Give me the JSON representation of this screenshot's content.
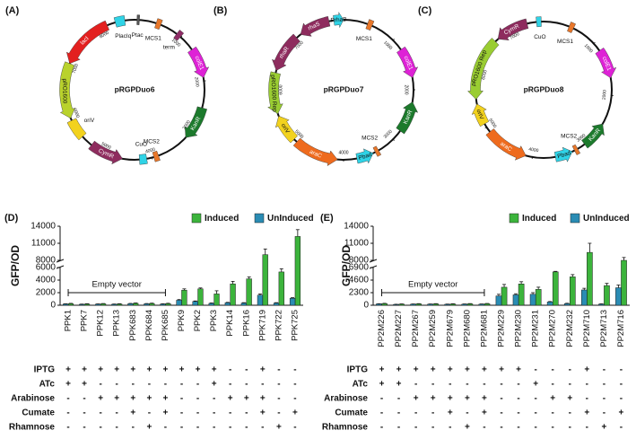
{
  "plasmids": [
    {
      "label": "(A)",
      "name": "pRGPDuo6",
      "ticks": [
        1000,
        2000,
        3000,
        4000,
        5000,
        6000,
        7000,
        8000
      ],
      "features": [
        {
          "label": "lacI",
          "color": "#e3201f"
        },
        {
          "label": "PlacIq",
          "color": "#2fd3e6"
        },
        {
          "label": "Ptac",
          "color": "#555555"
        },
        {
          "label": "MCS1",
          "color": "#e8772a"
        },
        {
          "label": "term",
          "color": "#8e2c66"
        },
        {
          "label": "colE1",
          "color": "#de22d6"
        },
        {
          "label": "KanR",
          "color": "#1c7a2c"
        },
        {
          "label": "MCS2",
          "color": "#e8772a"
        },
        {
          "label": "CuO",
          "color": "#2fd3e6"
        },
        {
          "label": "CymR",
          "color": "#8e2c5e"
        },
        {
          "label": "pRO1600",
          "color": "#b9d22c"
        },
        {
          "label": "oriV",
          "color": "#f2d21e"
        }
      ]
    },
    {
      "label": "(B)",
      "name": "pRGPDuo7",
      "ticks": [
        1000,
        2000,
        3000,
        4000,
        5000,
        6000,
        7000
      ],
      "features": [
        {
          "label": "rhaS",
          "color": "#8e2c5e"
        },
        {
          "label": "PrhaB",
          "color": "#2fd3e6"
        },
        {
          "label": "MCS1",
          "color": "#e8772a"
        },
        {
          "label": "colE1",
          "color": "#de22d6"
        },
        {
          "label": "KanR",
          "color": "#1c7a2c"
        },
        {
          "label": "MCS2",
          "color": "#e8772a"
        },
        {
          "label": "Pbad",
          "color": "#2fd3e6"
        },
        {
          "label": "araC",
          "color": "#ee6b1e"
        },
        {
          "label": "oriV",
          "color": "#f2d21e"
        },
        {
          "label": "pRO1600 Rep",
          "color": "#9acd32"
        },
        {
          "label": "rhaR",
          "color": "#8e2c5e"
        }
      ]
    },
    {
      "label": "(C)",
      "name": "pRGPDuo8",
      "ticks": [
        1000,
        2000,
        3000,
        4000,
        5000,
        6000,
        7000
      ],
      "features": [
        {
          "label": "CymR",
          "color": "#8e2c5e"
        },
        {
          "label": "CuO",
          "color": "#2fd3e6"
        },
        {
          "label": "MCS1",
          "color": "#e8772a"
        },
        {
          "label": "colE1",
          "color": "#de22d6"
        },
        {
          "label": "KanR",
          "color": "#1c7a2c"
        },
        {
          "label": "MCS2",
          "color": "#e8772a"
        },
        {
          "label": "Pbad",
          "color": "#2fd3e6"
        },
        {
          "label": "araC",
          "color": "#ee6b1e"
        },
        {
          "label": "oriV",
          "color": "#f2d21e"
        },
        {
          "label": "pRO1600 Rep",
          "color": "#9acd32"
        }
      ]
    }
  ],
  "chart_data": [
    {
      "type": "bar",
      "panel": "(D)",
      "ylabel": "GFP/OD",
      "legend": "top",
      "categories": [
        "PPK1",
        "PPK7",
        "PPK12",
        "PPK13",
        "PPK683",
        "PPK684",
        "PPK685",
        "PPK9",
        "PPK2",
        "PPK3",
        "PPK14",
        "PPK16",
        "PPK719",
        "PPK722",
        "PPK725"
      ],
      "series": [
        {
          "name": "Induced",
          "color": "#3cb43c",
          "values": [
            250,
            200,
            230,
            200,
            300,
            280,
            260,
            2400,
            2600,
            1800,
            3400,
            4200,
            9000,
            5300,
            12200
          ],
          "errors": [
            50,
            40,
            40,
            40,
            60,
            50,
            50,
            200,
            150,
            500,
            400,
            300,
            1000,
            500,
            1200
          ]
        },
        {
          "name": "UnInduced",
          "color": "#2a8cb4",
          "values": [
            200,
            150,
            180,
            160,
            250,
            230,
            200,
            800,
            600,
            300,
            400,
            350,
            1600,
            350,
            1100
          ],
          "errors": [
            30,
            30,
            30,
            30,
            40,
            40,
            30,
            100,
            80,
            60,
            60,
            60,
            200,
            60,
            100
          ]
        }
      ],
      "ylim": [
        0,
        14000
      ],
      "y_break": [
        6000,
        8000
      ],
      "yticks": [
        0,
        2000,
        4000,
        6000,
        8000,
        11000,
        14000
      ],
      "annotation": "Empty vector",
      "treatments": [
        {
          "name": "IPTG",
          "marks": [
            "+",
            "+",
            "+",
            "+",
            "+",
            "+",
            "+",
            "+",
            "+",
            "+",
            "-",
            "-",
            "+",
            "-",
            "-"
          ]
        },
        {
          "name": "ATc",
          "marks": [
            "+",
            "+",
            "-",
            "-",
            "-",
            "-",
            "-",
            "-",
            "-",
            "+",
            "-",
            "-",
            "-",
            "-",
            "-"
          ]
        },
        {
          "name": "Arabinose",
          "marks": [
            "-",
            "-",
            "+",
            "+",
            "+",
            "+",
            "+",
            "-",
            "-",
            "-",
            "+",
            "+",
            "+",
            "-",
            "-"
          ]
        },
        {
          "name": "Cumate",
          "marks": [
            "-",
            "-",
            "-",
            "-",
            "+",
            "-",
            "+",
            "-",
            "-",
            "-",
            "-",
            "-",
            "+",
            "-",
            "+"
          ]
        },
        {
          "name": "Rhamnose",
          "marks": [
            "-",
            "-",
            "-",
            "-",
            "-",
            "+",
            "-",
            "-",
            "-",
            "-",
            "-",
            "-",
            "-",
            "+",
            "-"
          ]
        }
      ]
    },
    {
      "type": "bar",
      "panel": "(E)",
      "ylabel": "GFP/OD",
      "legend": "top",
      "categories": [
        "PP2M226",
        "PP2M227",
        "PP2M267",
        "PP2M259",
        "PP2M679",
        "PP2M680",
        "PP2M681",
        "PP2M229",
        "PP2M230",
        "PP2M231",
        "PP2M270",
        "PP2M232",
        "PP2M710",
        "PP2M713",
        "PP2M716"
      ],
      "series": [
        {
          "name": "Induced",
          "color": "#3cb43c",
          "values": [
            300,
            200,
            250,
            250,
            230,
            260,
            280,
            3300,
            3900,
            2900,
            6100,
            5200,
            9400,
            3600,
            8000
          ],
          "errors": [
            50,
            40,
            40,
            40,
            40,
            40,
            40,
            500,
            400,
            400,
            100,
            400,
            1600,
            400,
            500
          ]
        },
        {
          "name": "UnInduced",
          "color": "#2a8cb4",
          "values": [
            250,
            150,
            200,
            200,
            180,
            200,
            200,
            1700,
            1900,
            2000,
            600,
            300,
            2800,
            200,
            3200
          ],
          "errors": [
            30,
            30,
            30,
            30,
            30,
            30,
            30,
            300,
            200,
            300,
            80,
            60,
            300,
            50,
            500
          ]
        }
      ],
      "ylim": [
        0,
        14000
      ],
      "y_break": [
        6900,
        8000
      ],
      "yticks": [
        0,
        2300,
        4600,
        6900,
        8000,
        11000,
        14000
      ],
      "annotation": "Empty vector",
      "treatments": [
        {
          "name": "IPTG",
          "marks": [
            "+",
            "+",
            "+",
            "+",
            "+",
            "+",
            "+",
            "+",
            "+",
            "-",
            "-",
            "-",
            "+",
            "-",
            "-"
          ]
        },
        {
          "name": "ATc",
          "marks": [
            "+",
            "+",
            "-",
            "-",
            "-",
            "-",
            "-",
            "-",
            "-",
            "+",
            "-",
            "-",
            "-",
            "-",
            "-"
          ]
        },
        {
          "name": "Arabinose",
          "marks": [
            "-",
            "-",
            "+",
            "+",
            "+",
            "+",
            "+",
            "-",
            "-",
            "-",
            "+",
            "+",
            "-",
            "-",
            "-"
          ]
        },
        {
          "name": "Cumate",
          "marks": [
            "-",
            "-",
            "-",
            "-",
            "+",
            "-",
            "+",
            "-",
            "-",
            "-",
            "-",
            "-",
            "+",
            "-",
            "+"
          ]
        },
        {
          "name": "Rhamnose",
          "marks": [
            "-",
            "-",
            "-",
            "-",
            "-",
            "+",
            "-",
            "-",
            "-",
            "-",
            "-",
            "-",
            "-",
            "+",
            "-"
          ]
        }
      ]
    }
  ]
}
